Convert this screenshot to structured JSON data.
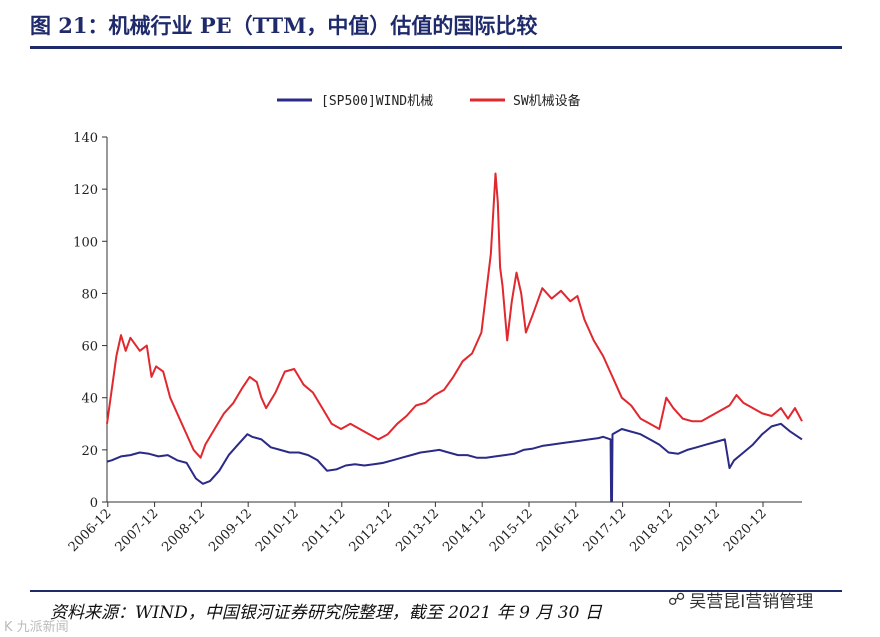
{
  "header": {
    "title": "图 21：机械行业 PE（TTM，中值）估值的国际比较"
  },
  "footer": {
    "source": "资料来源：WIND，中国银河证券研究院整理，截至 2021 年 9 月 30 日",
    "watermark_right": "吴营昆I营销管理",
    "watermark_left": "K 九派新闻"
  },
  "colors": {
    "title": "#1f2a6b",
    "series_sp500": "#2b2a86",
    "series_sw": "#e0282e"
  },
  "chart_data": {
    "type": "line",
    "x_tick_labels": [
      "2006-12",
      "2007-12",
      "2008-12",
      "2009-12",
      "2010-12",
      "2011-12",
      "2012-12",
      "2013-12",
      "2014-12",
      "2015-12",
      "2016-12",
      "2017-12",
      "2018-12",
      "2019-12",
      "2020-12"
    ],
    "y_tick_labels": [
      "0",
      "20",
      "40",
      "60",
      "80",
      "100",
      "120",
      "140"
    ],
    "ylim": [
      0,
      140
    ],
    "xlim": [
      2006.9,
      2021.75
    ],
    "grid": false,
    "legend_position": "top-center",
    "series": [
      {
        "name": "[SP500]WIND机械",
        "color": "#2b2a86",
        "points": [
          [
            2006.9,
            15.5
          ],
          [
            2007.0,
            16
          ],
          [
            2007.2,
            17.5
          ],
          [
            2007.4,
            18
          ],
          [
            2007.6,
            19
          ],
          [
            2007.8,
            18.5
          ],
          [
            2008.0,
            17.5
          ],
          [
            2008.2,
            18
          ],
          [
            2008.4,
            16
          ],
          [
            2008.6,
            15
          ],
          [
            2008.8,
            9
          ],
          [
            2008.95,
            7
          ],
          [
            2009.1,
            8
          ],
          [
            2009.3,
            12
          ],
          [
            2009.5,
            18
          ],
          [
            2009.7,
            22
          ],
          [
            2009.9,
            26
          ],
          [
            2010.0,
            25
          ],
          [
            2010.2,
            24
          ],
          [
            2010.4,
            21
          ],
          [
            2010.6,
            20
          ],
          [
            2010.8,
            19
          ],
          [
            2011.0,
            19
          ],
          [
            2011.2,
            18
          ],
          [
            2011.4,
            16
          ],
          [
            2011.6,
            12
          ],
          [
            2011.8,
            12.5
          ],
          [
            2012.0,
            14
          ],
          [
            2012.2,
            14.5
          ],
          [
            2012.4,
            14
          ],
          [
            2012.6,
            14.5
          ],
          [
            2012.8,
            15
          ],
          [
            2013.0,
            16
          ],
          [
            2013.2,
            17
          ],
          [
            2013.4,
            18
          ],
          [
            2013.6,
            19
          ],
          [
            2013.8,
            19.5
          ],
          [
            2014.0,
            20
          ],
          [
            2014.2,
            19
          ],
          [
            2014.4,
            18
          ],
          [
            2014.6,
            18
          ],
          [
            2014.8,
            17
          ],
          [
            2015.0,
            17
          ],
          [
            2015.2,
            17.5
          ],
          [
            2015.4,
            18
          ],
          [
            2015.6,
            18.5
          ],
          [
            2015.8,
            20
          ],
          [
            2016.0,
            20.5
          ],
          [
            2016.2,
            21.5
          ],
          [
            2016.4,
            22
          ],
          [
            2016.6,
            22.5
          ],
          [
            2016.8,
            23
          ],
          [
            2017.0,
            23.5
          ],
          [
            2017.2,
            24
          ],
          [
            2017.4,
            24.5
          ],
          [
            2017.5,
            25
          ],
          [
            2017.66,
            24
          ],
          [
            2017.67,
            0.5
          ],
          [
            2017.69,
            0.5
          ],
          [
            2017.7,
            26
          ],
          [
            2017.9,
            28
          ],
          [
            2018.1,
            27
          ],
          [
            2018.3,
            26
          ],
          [
            2018.5,
            24
          ],
          [
            2018.7,
            22
          ],
          [
            2018.9,
            19
          ],
          [
            2019.1,
            18.5
          ],
          [
            2019.3,
            20
          ],
          [
            2019.5,
            21
          ],
          [
            2019.7,
            22
          ],
          [
            2019.9,
            23
          ],
          [
            2020.1,
            24
          ],
          [
            2020.2,
            13
          ],
          [
            2020.3,
            16
          ],
          [
            2020.5,
            19
          ],
          [
            2020.7,
            22
          ],
          [
            2020.9,
            26
          ],
          [
            2021.1,
            29
          ],
          [
            2021.3,
            30
          ],
          [
            2021.5,
            27
          ],
          [
            2021.75,
            24
          ]
        ]
      },
      {
        "name": "SW机械设备",
        "color": "#e0282e",
        "points": [
          [
            2006.9,
            30
          ],
          [
            2007.0,
            43
          ],
          [
            2007.1,
            56
          ],
          [
            2007.2,
            64
          ],
          [
            2007.3,
            58
          ],
          [
            2007.4,
            63
          ],
          [
            2007.6,
            58
          ],
          [
            2007.75,
            60
          ],
          [
            2007.85,
            48
          ],
          [
            2007.95,
            52
          ],
          [
            2008.1,
            50
          ],
          [
            2008.25,
            40
          ],
          [
            2008.4,
            34
          ],
          [
            2008.55,
            28
          ],
          [
            2008.75,
            20
          ],
          [
            2008.9,
            17
          ],
          [
            2009.0,
            22
          ],
          [
            2009.2,
            28
          ],
          [
            2009.4,
            34
          ],
          [
            2009.6,
            38
          ],
          [
            2009.8,
            44
          ],
          [
            2009.95,
            48
          ],
          [
            2010.1,
            46
          ],
          [
            2010.2,
            40
          ],
          [
            2010.3,
            36
          ],
          [
            2010.5,
            42
          ],
          [
            2010.7,
            50
          ],
          [
            2010.9,
            51
          ],
          [
            2011.1,
            45
          ],
          [
            2011.3,
            42
          ],
          [
            2011.5,
            36
          ],
          [
            2011.7,
            30
          ],
          [
            2011.9,
            28
          ],
          [
            2012.1,
            30
          ],
          [
            2012.3,
            28
          ],
          [
            2012.5,
            26
          ],
          [
            2012.7,
            24
          ],
          [
            2012.9,
            26
          ],
          [
            2013.1,
            30
          ],
          [
            2013.3,
            33
          ],
          [
            2013.5,
            37
          ],
          [
            2013.7,
            38
          ],
          [
            2013.9,
            41
          ],
          [
            2014.1,
            43
          ],
          [
            2014.3,
            48
          ],
          [
            2014.5,
            54
          ],
          [
            2014.7,
            57
          ],
          [
            2014.9,
            65
          ],
          [
            2015.0,
            80
          ],
          [
            2015.1,
            95
          ],
          [
            2015.15,
            110
          ],
          [
            2015.2,
            126
          ],
          [
            2015.25,
            115
          ],
          [
            2015.3,
            90
          ],
          [
            2015.35,
            83
          ],
          [
            2015.45,
            62
          ],
          [
            2015.55,
            77
          ],
          [
            2015.65,
            88
          ],
          [
            2015.75,
            80
          ],
          [
            2015.85,
            65
          ],
          [
            2016.0,
            72
          ],
          [
            2016.2,
            82
          ],
          [
            2016.4,
            78
          ],
          [
            2016.6,
            81
          ],
          [
            2016.8,
            77
          ],
          [
            2016.95,
            79
          ],
          [
            2017.1,
            70
          ],
          [
            2017.3,
            62
          ],
          [
            2017.5,
            56
          ],
          [
            2017.7,
            48
          ],
          [
            2017.9,
            40
          ],
          [
            2018.1,
            37
          ],
          [
            2018.3,
            32
          ],
          [
            2018.5,
            30
          ],
          [
            2018.7,
            28
          ],
          [
            2018.85,
            40
          ],
          [
            2019.0,
            36
          ],
          [
            2019.2,
            32
          ],
          [
            2019.4,
            31
          ],
          [
            2019.6,
            31
          ],
          [
            2019.8,
            33
          ],
          [
            2020.0,
            35
          ],
          [
            2020.2,
            37
          ],
          [
            2020.35,
            41
          ],
          [
            2020.5,
            38
          ],
          [
            2020.7,
            36
          ],
          [
            2020.9,
            34
          ],
          [
            2021.1,
            33
          ],
          [
            2021.3,
            36
          ],
          [
            2021.45,
            32
          ],
          [
            2021.6,
            36
          ],
          [
            2021.75,
            31
          ]
        ]
      }
    ]
  }
}
